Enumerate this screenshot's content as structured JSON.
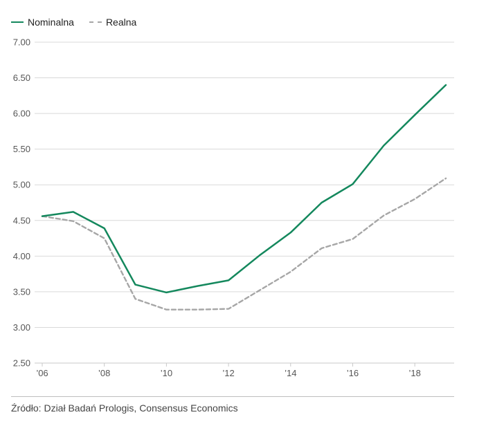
{
  "legend": {
    "nominal": "Nominalna",
    "real": "Realna"
  },
  "source": "Źródło: Dział Badań Prologis, Consensus Economics",
  "colors": {
    "nominal": "#14885d",
    "real": "#a6a6a6",
    "grid": "#d9d9d9",
    "tick_text": "#555555"
  },
  "chart_data": {
    "type": "line",
    "title": "",
    "xlabel": "",
    "ylabel": "",
    "xlim": [
      2006,
      2019
    ],
    "ylim": [
      2.5,
      7.0
    ],
    "grid": true,
    "legend_position": "top-left",
    "yticks": [
      2.5,
      3.0,
      3.5,
      4.0,
      4.5,
      5.0,
      5.5,
      6.0,
      6.5,
      7.0
    ],
    "ytick_labels": [
      "2.50",
      "3.00",
      "3.50",
      "4.00",
      "4.50",
      "5.00",
      "5.50",
      "6.00",
      "6.50",
      "7.00"
    ],
    "xticks": [
      2006,
      2008,
      2010,
      2012,
      2014,
      2016,
      2018
    ],
    "xtick_labels": [
      "’06",
      "’08",
      "’10",
      "’12",
      "’14",
      "’16",
      "’18"
    ],
    "series": [
      {
        "name": "Nominalna",
        "style": "solid",
        "x": [
          2006,
          2007,
          2008,
          2009,
          2010,
          2011,
          2012,
          2013,
          2014,
          2015,
          2016,
          2017,
          2018,
          2019
        ],
        "y": [
          4.56,
          4.62,
          4.39,
          3.6,
          3.49,
          3.58,
          3.66,
          4.01,
          4.33,
          4.75,
          5.01,
          5.55,
          5.98,
          6.4
        ]
      },
      {
        "name": "Realna",
        "style": "dashed",
        "x": [
          2006,
          2007,
          2008,
          2009,
          2010,
          2011,
          2012,
          2013,
          2014,
          2015,
          2016,
          2017,
          2018,
          2019
        ],
        "y": [
          4.56,
          4.49,
          4.25,
          3.4,
          3.25,
          3.25,
          3.26,
          3.52,
          3.78,
          4.11,
          4.24,
          4.57,
          4.8,
          5.09
        ]
      }
    ]
  }
}
